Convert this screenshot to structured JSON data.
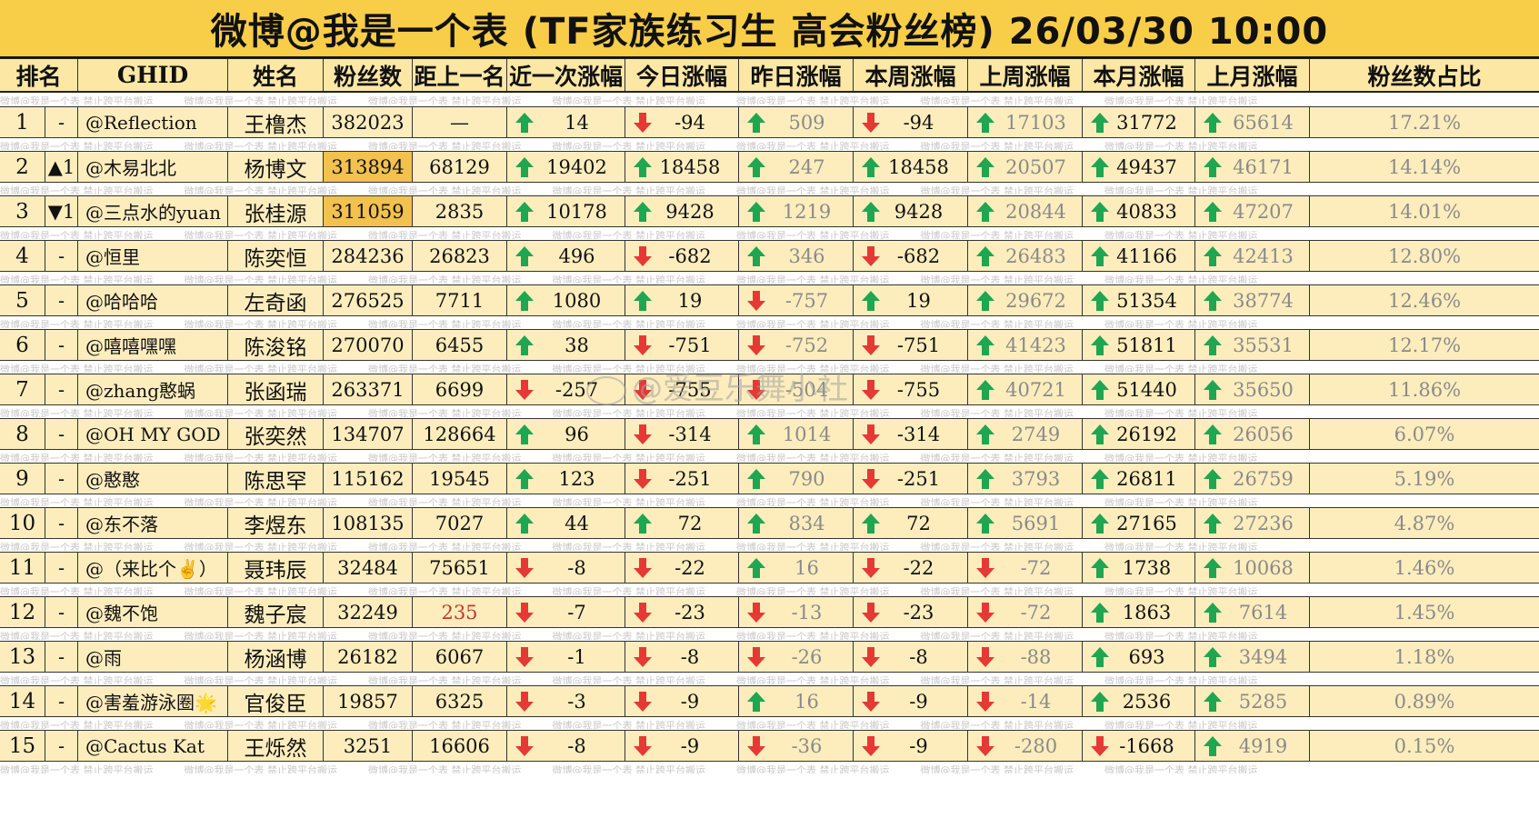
{
  "title": "微博@我是一个表 (TF家族练习生 高会粉丝榜)  26/03/30 10:00",
  "watermark_line": "微博@我是一个表    禁止跨平台搬运",
  "overlay_watermark": "@爱豆乐舞小社",
  "headers": [
    "排名",
    "GHID",
    "姓名",
    "粉丝数",
    "距上一名",
    "近一次涨幅",
    "今日涨幅",
    "昨日涨幅",
    "本周涨幅",
    "上周涨幅",
    "本月涨幅",
    "上月涨幅",
    "粉丝数占比"
  ],
  "colors": {
    "title_bg": "#f8cd48",
    "row_bg": "#fdedbd",
    "highlight": "#f2c14e",
    "up_arrow": "#1fa651",
    "down_arrow": "#e53935",
    "rank_up": "#2a9d3a",
    "rank_down": "#c0392b"
  },
  "rows": [
    {
      "rank": "1",
      "change": "-",
      "change_dir": "",
      "ghid": "@Reflection",
      "name": "王橹杰",
      "fans": "382023",
      "gap": "—",
      "recent": {
        "dir": "up",
        "v": "14"
      },
      "today": {
        "dir": "down",
        "v": "-94"
      },
      "yesterday": {
        "dir": "up",
        "v": "509"
      },
      "week": {
        "dir": "down",
        "v": "-94"
      },
      "lastweek": {
        "dir": "up",
        "v": "17103"
      },
      "month": {
        "dir": "up",
        "v": "31772"
      },
      "lastmonth": {
        "dir": "up",
        "v": "65614"
      },
      "share": "17.21%"
    },
    {
      "rank": "2",
      "change": "▲1",
      "change_dir": "up",
      "ghid": "@木易北北",
      "name": "杨博文",
      "fans": "313894",
      "fans_hl": true,
      "gap": "68129",
      "recent": {
        "dir": "up",
        "v": "19402"
      },
      "today": {
        "dir": "up",
        "v": "18458"
      },
      "yesterday": {
        "dir": "up",
        "v": "247"
      },
      "week": {
        "dir": "up",
        "v": "18458"
      },
      "lastweek": {
        "dir": "up",
        "v": "20507"
      },
      "month": {
        "dir": "up",
        "v": "49437"
      },
      "lastmonth": {
        "dir": "up",
        "v": "46171"
      },
      "share": "14.14%"
    },
    {
      "rank": "3",
      "change": "▼1",
      "change_dir": "down",
      "ghid": "@三点水的yuan",
      "name": "张桂源",
      "fans": "311059",
      "fans_hl": true,
      "gap": "2835",
      "recent": {
        "dir": "up",
        "v": "10178"
      },
      "today": {
        "dir": "up",
        "v": "9428"
      },
      "yesterday": {
        "dir": "up",
        "v": "1219"
      },
      "week": {
        "dir": "up",
        "v": "9428"
      },
      "lastweek": {
        "dir": "up",
        "v": "20844"
      },
      "month": {
        "dir": "up",
        "v": "40833"
      },
      "lastmonth": {
        "dir": "up",
        "v": "47207"
      },
      "share": "14.01%"
    },
    {
      "rank": "4",
      "change": "-",
      "change_dir": "",
      "ghid": "@恒里",
      "name": "陈奕恒",
      "fans": "284236",
      "gap": "26823",
      "recent": {
        "dir": "up",
        "v": "496"
      },
      "today": {
        "dir": "down",
        "v": "-682"
      },
      "yesterday": {
        "dir": "up",
        "v": "346"
      },
      "week": {
        "dir": "down",
        "v": "-682"
      },
      "lastweek": {
        "dir": "up",
        "v": "26483"
      },
      "month": {
        "dir": "up",
        "v": "41166"
      },
      "lastmonth": {
        "dir": "up",
        "v": "42413"
      },
      "share": "12.80%"
    },
    {
      "rank": "5",
      "change": "-",
      "change_dir": "",
      "ghid": "@哈哈哈",
      "name": "左奇函",
      "fans": "276525",
      "gap": "7711",
      "recent": {
        "dir": "up",
        "v": "1080"
      },
      "today": {
        "dir": "up",
        "v": "19"
      },
      "yesterday": {
        "dir": "down",
        "v": "-757"
      },
      "week": {
        "dir": "up",
        "v": "19"
      },
      "lastweek": {
        "dir": "up",
        "v": "29672"
      },
      "month": {
        "dir": "up",
        "v": "51354"
      },
      "lastmonth": {
        "dir": "up",
        "v": "38774"
      },
      "share": "12.46%"
    },
    {
      "rank": "6",
      "change": "-",
      "change_dir": "",
      "ghid": "@嘻嘻嘿嘿",
      "name": "陈浚铭",
      "fans": "270070",
      "gap": "6455",
      "recent": {
        "dir": "up",
        "v": "38"
      },
      "today": {
        "dir": "down",
        "v": "-751"
      },
      "yesterday": {
        "dir": "down",
        "v": "-752"
      },
      "week": {
        "dir": "down",
        "v": "-751"
      },
      "lastweek": {
        "dir": "up",
        "v": "41423"
      },
      "month": {
        "dir": "up",
        "v": "51811"
      },
      "lastmonth": {
        "dir": "up",
        "v": "35531"
      },
      "share": "12.17%"
    },
    {
      "rank": "7",
      "change": "-",
      "change_dir": "",
      "ghid": "@zhang憨蜗",
      "name": "张函瑞",
      "fans": "263371",
      "gap": "6699",
      "recent": {
        "dir": "down",
        "v": "-257"
      },
      "today": {
        "dir": "down",
        "v": "-755"
      },
      "yesterday": {
        "dir": "down",
        "v": "-504"
      },
      "week": {
        "dir": "down",
        "v": "-755"
      },
      "lastweek": {
        "dir": "up",
        "v": "40721"
      },
      "month": {
        "dir": "up",
        "v": "51440"
      },
      "lastmonth": {
        "dir": "up",
        "v": "35650"
      },
      "share": "11.86%"
    },
    {
      "rank": "8",
      "change": "-",
      "change_dir": "",
      "ghid": "@OH MY GOD",
      "name": "张奕然",
      "fans": "134707",
      "gap": "128664",
      "recent": {
        "dir": "up",
        "v": "96"
      },
      "today": {
        "dir": "down",
        "v": "-314"
      },
      "yesterday": {
        "dir": "up",
        "v": "1014"
      },
      "week": {
        "dir": "down",
        "v": "-314"
      },
      "lastweek": {
        "dir": "up",
        "v": "2749"
      },
      "month": {
        "dir": "up",
        "v": "26192"
      },
      "lastmonth": {
        "dir": "up",
        "v": "26056"
      },
      "share": "6.07%"
    },
    {
      "rank": "9",
      "change": "-",
      "change_dir": "",
      "ghid": "@憨憨",
      "name": "陈思罕",
      "fans": "115162",
      "gap": "19545",
      "recent": {
        "dir": "up",
        "v": "123"
      },
      "today": {
        "dir": "down",
        "v": "-251"
      },
      "yesterday": {
        "dir": "up",
        "v": "790"
      },
      "week": {
        "dir": "down",
        "v": "-251"
      },
      "lastweek": {
        "dir": "up",
        "v": "3793"
      },
      "month": {
        "dir": "up",
        "v": "26811"
      },
      "lastmonth": {
        "dir": "up",
        "v": "26759"
      },
      "share": "5.19%"
    },
    {
      "rank": "10",
      "change": "-",
      "change_dir": "",
      "ghid": "@东不落",
      "name": "李煜东",
      "fans": "108135",
      "gap": "7027",
      "recent": {
        "dir": "up",
        "v": "44"
      },
      "today": {
        "dir": "up",
        "v": "72"
      },
      "yesterday": {
        "dir": "up",
        "v": "834"
      },
      "week": {
        "dir": "up",
        "v": "72"
      },
      "lastweek": {
        "dir": "up",
        "v": "5691"
      },
      "month": {
        "dir": "up",
        "v": "27165"
      },
      "lastmonth": {
        "dir": "up",
        "v": "27236"
      },
      "share": "4.87%"
    },
    {
      "rank": "11",
      "change": "-",
      "change_dir": "",
      "ghid": "@（来比个✌️）",
      "name": "聂玮辰",
      "fans": "32484",
      "gap": "75651",
      "recent": {
        "dir": "down",
        "v": "-8"
      },
      "today": {
        "dir": "down",
        "v": "-22"
      },
      "yesterday": {
        "dir": "up",
        "v": "16"
      },
      "week": {
        "dir": "down",
        "v": "-22"
      },
      "lastweek": {
        "dir": "down",
        "v": "-72"
      },
      "month": {
        "dir": "up",
        "v": "1738"
      },
      "lastmonth": {
        "dir": "up",
        "v": "10068"
      },
      "share": "1.46%"
    },
    {
      "rank": "12",
      "change": "-",
      "change_dir": "",
      "ghid": "@魏不饱",
      "name": "魏子宸",
      "fans": "32249",
      "gap": "235",
      "gap_red": true,
      "recent": {
        "dir": "down",
        "v": "-7"
      },
      "today": {
        "dir": "down",
        "v": "-23"
      },
      "yesterday": {
        "dir": "down",
        "v": "-13"
      },
      "week": {
        "dir": "down",
        "v": "-23"
      },
      "lastweek": {
        "dir": "down",
        "v": "-72"
      },
      "month": {
        "dir": "up",
        "v": "1863"
      },
      "lastmonth": {
        "dir": "up",
        "v": "7614"
      },
      "share": "1.45%"
    },
    {
      "rank": "13",
      "change": "-",
      "change_dir": "",
      "ghid": "@雨",
      "name": "杨涵博",
      "fans": "26182",
      "gap": "6067",
      "recent": {
        "dir": "down",
        "v": "-1"
      },
      "today": {
        "dir": "down",
        "v": "-8"
      },
      "yesterday": {
        "dir": "down",
        "v": "-26"
      },
      "week": {
        "dir": "down",
        "v": "-8"
      },
      "lastweek": {
        "dir": "down",
        "v": "-88"
      },
      "month": {
        "dir": "up",
        "v": "693"
      },
      "lastmonth": {
        "dir": "up",
        "v": "3494"
      },
      "share": "1.18%"
    },
    {
      "rank": "14",
      "change": "-",
      "change_dir": "",
      "ghid": "@害羞游泳圈🌟",
      "name": "官俊臣",
      "fans": "19857",
      "gap": "6325",
      "recent": {
        "dir": "down",
        "v": "-3"
      },
      "today": {
        "dir": "down",
        "v": "-9"
      },
      "yesterday": {
        "dir": "up",
        "v": "16"
      },
      "week": {
        "dir": "down",
        "v": "-9"
      },
      "lastweek": {
        "dir": "down",
        "v": "-14"
      },
      "month": {
        "dir": "up",
        "v": "2536"
      },
      "lastmonth": {
        "dir": "up",
        "v": "5285"
      },
      "share": "0.89%"
    },
    {
      "rank": "15",
      "change": "-",
      "change_dir": "",
      "ghid": "@Cactus Kat",
      "name": "王烁然",
      "fans": "3251",
      "gap": "16606",
      "recent": {
        "dir": "down",
        "v": "-8"
      },
      "today": {
        "dir": "down",
        "v": "-9"
      },
      "yesterday": {
        "dir": "down",
        "v": "-36"
      },
      "week": {
        "dir": "down",
        "v": "-9"
      },
      "lastweek": {
        "dir": "down",
        "v": "-280"
      },
      "month": {
        "dir": "down",
        "v": "-1668"
      },
      "lastmonth": {
        "dir": "up",
        "v": "4919"
      },
      "share": "0.15%"
    }
  ]
}
